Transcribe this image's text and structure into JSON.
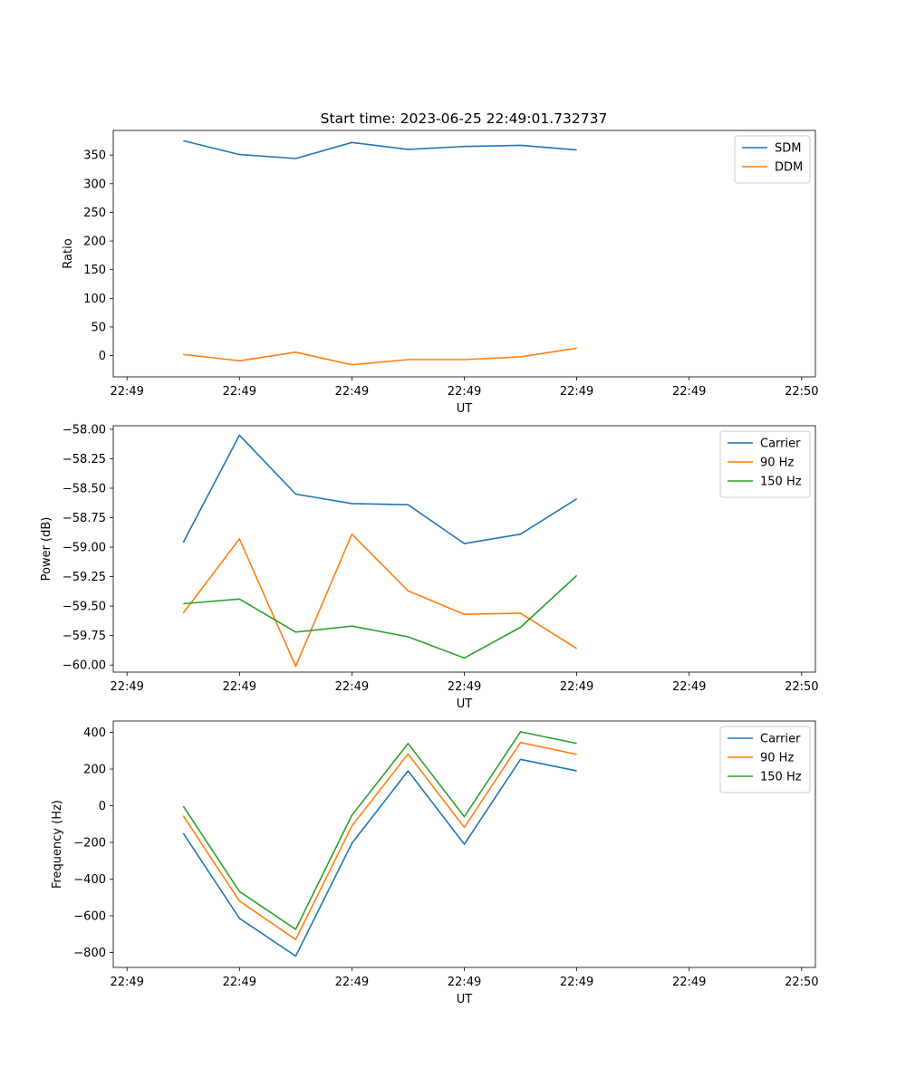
{
  "figure": {
    "title": "Start time: 2023-06-25 22:49:01.732737"
  },
  "chart_data": [
    {
      "type": "line",
      "title": "Start time: 2023-06-25 22:49:01.732737",
      "xlabel": "UT",
      "ylabel": "Ratio",
      "xlim": [
        0,
        12
      ],
      "ylim": [
        -37,
        393
      ],
      "x": [
        1,
        2,
        3,
        4,
        5,
        6,
        7,
        8
      ],
      "x_tick_labels": [
        "22:49",
        "22:49",
        "22:49",
        "22:49",
        "22:49",
        "22:49",
        "22:50"
      ],
      "y_ticks": [
        0,
        50,
        100,
        150,
        200,
        250,
        300,
        350
      ],
      "y_tick_labels": [
        "0",
        "50",
        "100",
        "150",
        "200",
        "250",
        "300",
        "350"
      ],
      "grid": false,
      "legend_position": "upper right",
      "series": [
        {
          "name": "SDM",
          "color": "#1f77b4",
          "values": [
            375,
            351,
            344,
            372,
            360,
            365,
            367,
            359
          ]
        },
        {
          "name": "DDM",
          "color": "#ff7f0e",
          "values": [
            2,
            -9,
            6,
            -16,
            -7,
            -7,
            -2,
            13
          ]
        }
      ]
    },
    {
      "type": "line",
      "title": "",
      "xlabel": "UT",
      "ylabel": "Power (dB)",
      "xlim": [
        0,
        12
      ],
      "ylim": [
        -60.06,
        -57.97
      ],
      "x": [
        1,
        2,
        3,
        4,
        5,
        6,
        7,
        8
      ],
      "x_tick_labels": [
        "22:49",
        "22:49",
        "22:49",
        "22:49",
        "22:49",
        "22:49",
        "22:50"
      ],
      "y_ticks": [
        -60.0,
        -59.75,
        -59.5,
        -59.25,
        -59.0,
        -58.75,
        -58.5,
        -58.25,
        -58.0
      ],
      "y_tick_labels": [
        "−60.00",
        "−59.75",
        "−59.50",
        "−59.25",
        "−59.00",
        "−58.75",
        "−58.50",
        "−58.25",
        "−58.00"
      ],
      "grid": false,
      "legend_position": "upper right",
      "series": [
        {
          "name": "Carrier",
          "color": "#1f77b4",
          "values": [
            -58.96,
            -58.05,
            -58.55,
            -58.63,
            -58.64,
            -58.97,
            -58.89,
            -58.59
          ]
        },
        {
          "name": "90 Hz",
          "color": "#ff7f0e",
          "values": [
            -59.56,
            -58.93,
            -60.01,
            -58.89,
            -59.37,
            -59.57,
            -59.56,
            -59.86
          ]
        },
        {
          "name": "150 Hz",
          "color": "#2ca02c",
          "values": [
            -59.48,
            -59.44,
            -59.72,
            -59.67,
            -59.76,
            -59.94,
            -59.68,
            -59.24
          ]
        }
      ]
    },
    {
      "type": "line",
      "title": "",
      "xlabel": "UT",
      "ylabel": "Frequency (Hz)",
      "xlim": [
        0,
        12
      ],
      "ylim": [
        -882,
        462
      ],
      "x": [
        1,
        2,
        3,
        4,
        5,
        6,
        7,
        8
      ],
      "x_tick_labels": [
        "22:49",
        "22:49",
        "22:49",
        "22:49",
        "22:49",
        "22:49",
        "22:50"
      ],
      "y_ticks": [
        -800,
        -600,
        -400,
        -200,
        0,
        200,
        400
      ],
      "y_tick_labels": [
        "−800",
        "−600",
        "−400",
        "−200",
        "0",
        "200",
        "400"
      ],
      "grid": false,
      "legend_position": "upper right",
      "series": [
        {
          "name": "Carrier",
          "color": "#1f77b4",
          "values": [
            -150,
            -614,
            -820,
            -205,
            190,
            -210,
            253,
            190
          ]
        },
        {
          "name": "90 Hz",
          "color": "#ff7f0e",
          "values": [
            -55,
            -520,
            -730,
            -110,
            282,
            -118,
            345,
            280
          ]
        },
        {
          "name": "150 Hz",
          "color": "#2ca02c",
          "values": [
            -2,
            -468,
            -674,
            -52,
            340,
            -60,
            403,
            340
          ]
        }
      ]
    }
  ]
}
